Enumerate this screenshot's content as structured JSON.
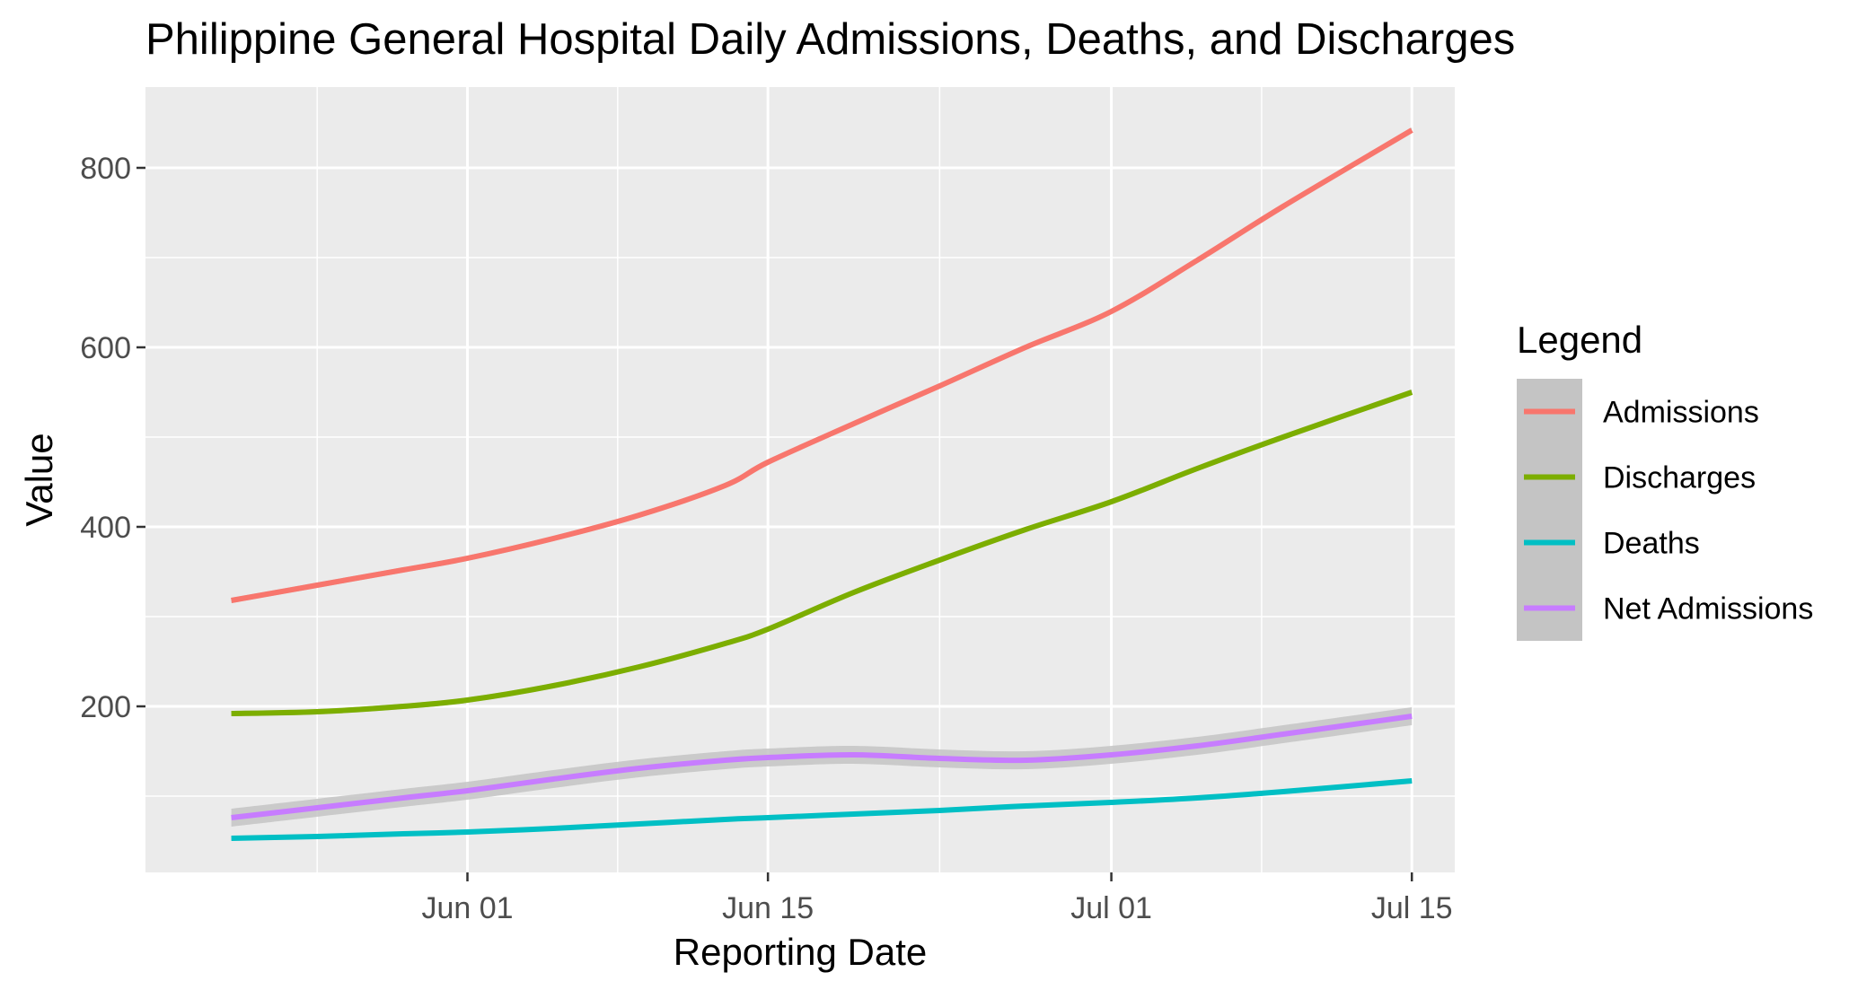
{
  "chart_data": {
    "type": "line",
    "title": "Philippine General Hospital Daily Admissions, Deaths, and Discharges",
    "xlabel": "Reporting Date",
    "ylabel": "Value",
    "x_start": "2020-05-21",
    "x_end": "2020-07-15",
    "xlim": [
      "2020-05-17",
      "2020-07-17"
    ],
    "ylim": [
      15,
      890
    ],
    "x_ticks": [
      {
        "date": "2020-06-01",
        "label": "Jun 01"
      },
      {
        "date": "2020-06-15",
        "label": "Jun 15"
      },
      {
        "date": "2020-07-01",
        "label": "Jul 01"
      },
      {
        "date": "2020-07-15",
        "label": "Jul 15"
      }
    ],
    "x_minor_ticks": [
      "2020-05-25",
      "2020-06-08",
      "2020-06-23",
      "2020-07-08"
    ],
    "y_ticks": [
      200,
      400,
      600,
      800
    ],
    "y_minor_ticks": [
      100,
      300,
      500,
      700
    ],
    "grid": true,
    "legend_title": "Legend",
    "legend_position": "right",
    "series": [
      {
        "name": "Admissions",
        "color": "#F8766D",
        "points": [
          {
            "x": "2020-05-21",
            "y": 318
          },
          {
            "x": "2020-05-25",
            "y": 335
          },
          {
            "x": "2020-05-29",
            "y": 352
          },
          {
            "x": "2020-06-01",
            "y": 365
          },
          {
            "x": "2020-06-05",
            "y": 387
          },
          {
            "x": "2020-06-09",
            "y": 413
          },
          {
            "x": "2020-06-13",
            "y": 446
          },
          {
            "x": "2020-06-15",
            "y": 472
          },
          {
            "x": "2020-06-19",
            "y": 515
          },
          {
            "x": "2020-06-23",
            "y": 557
          },
          {
            "x": "2020-06-27",
            "y": 600
          },
          {
            "x": "2020-07-01",
            "y": 640
          },
          {
            "x": "2020-07-05",
            "y": 697
          },
          {
            "x": "2020-07-09",
            "y": 757
          },
          {
            "x": "2020-07-15",
            "y": 842
          }
        ],
        "band_halfwidth": 3
      },
      {
        "name": "Discharges",
        "color": "#7CAE00",
        "points": [
          {
            "x": "2020-05-21",
            "y": 192
          },
          {
            "x": "2020-05-25",
            "y": 194
          },
          {
            "x": "2020-05-29",
            "y": 200
          },
          {
            "x": "2020-06-01",
            "y": 207
          },
          {
            "x": "2020-06-05",
            "y": 223
          },
          {
            "x": "2020-06-09",
            "y": 244
          },
          {
            "x": "2020-06-13",
            "y": 270
          },
          {
            "x": "2020-06-15",
            "y": 286
          },
          {
            "x": "2020-06-19",
            "y": 327
          },
          {
            "x": "2020-06-23",
            "y": 363
          },
          {
            "x": "2020-06-27",
            "y": 397
          },
          {
            "x": "2020-07-01",
            "y": 428
          },
          {
            "x": "2020-07-05",
            "y": 465
          },
          {
            "x": "2020-07-09",
            "y": 500
          },
          {
            "x": "2020-07-15",
            "y": 550
          }
        ],
        "band_halfwidth": 3
      },
      {
        "name": "Deaths",
        "color": "#00BFC4",
        "points": [
          {
            "x": "2020-05-21",
            "y": 53
          },
          {
            "x": "2020-05-25",
            "y": 55
          },
          {
            "x": "2020-05-29",
            "y": 58
          },
          {
            "x": "2020-06-01",
            "y": 60
          },
          {
            "x": "2020-06-05",
            "y": 64
          },
          {
            "x": "2020-06-09",
            "y": 69
          },
          {
            "x": "2020-06-13",
            "y": 74
          },
          {
            "x": "2020-06-15",
            "y": 76
          },
          {
            "x": "2020-06-19",
            "y": 80
          },
          {
            "x": "2020-06-23",
            "y": 84
          },
          {
            "x": "2020-06-27",
            "y": 89
          },
          {
            "x": "2020-07-01",
            "y": 93
          },
          {
            "x": "2020-07-05",
            "y": 98
          },
          {
            "x": "2020-07-09",
            "y": 105
          },
          {
            "x": "2020-07-15",
            "y": 117
          }
        ],
        "band_halfwidth": 2
      },
      {
        "name": "Net Admissions",
        "color": "#C77CFF",
        "points": [
          {
            "x": "2020-05-21",
            "y": 76
          },
          {
            "x": "2020-05-25",
            "y": 87
          },
          {
            "x": "2020-05-29",
            "y": 98
          },
          {
            "x": "2020-06-01",
            "y": 106
          },
          {
            "x": "2020-06-05",
            "y": 119
          },
          {
            "x": "2020-06-09",
            "y": 131
          },
          {
            "x": "2020-06-13",
            "y": 140
          },
          {
            "x": "2020-06-15",
            "y": 143
          },
          {
            "x": "2020-06-19",
            "y": 146
          },
          {
            "x": "2020-06-23",
            "y": 142
          },
          {
            "x": "2020-06-27",
            "y": 140
          },
          {
            "x": "2020-07-01",
            "y": 146
          },
          {
            "x": "2020-07-05",
            "y": 156
          },
          {
            "x": "2020-07-09",
            "y": 169
          },
          {
            "x": "2020-07-15",
            "y": 189
          }
        ],
        "band_halfwidth": 10
      }
    ],
    "background_color": "#EBEBEB",
    "grid_color": "#FFFFFF",
    "band_color": "#C4C4C4"
  }
}
